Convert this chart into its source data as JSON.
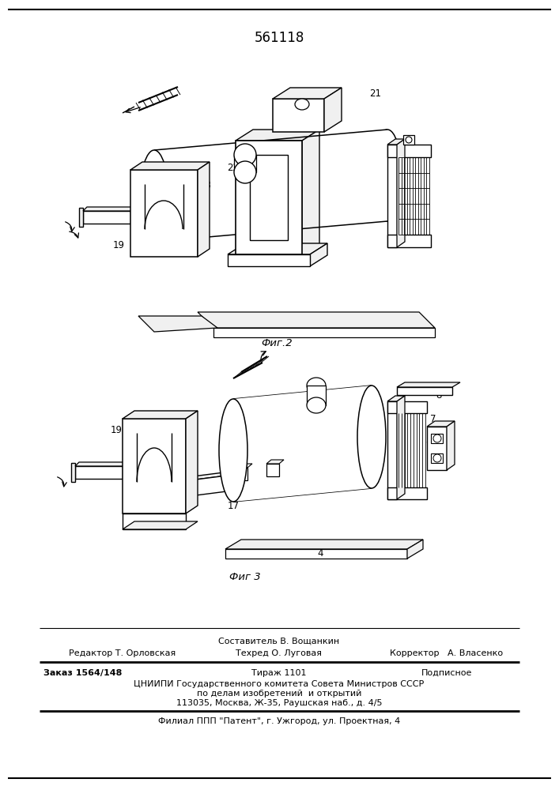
{
  "patent_number": "561118",
  "fig2_label": "Фиг.2",
  "fig3_label": "Фиг 3",
  "footer_line1": "Составитель В. Вощанкин",
  "footer_line2_col1": "Редактор Т. Орловская",
  "footer_line2_col2": "Техред О. Луговая",
  "footer_line2_col3": "Корректор   А. Власенко",
  "footer_line3_col1": "Заказ 1564/148",
  "footer_line3_col2": "Тираж 1101",
  "footer_line3_col3": "Подписное",
  "footer_line4": "ЦНИИПИ Государственного комитета Совета Министров СССР",
  "footer_line5": "по делам изобретений  и открытий",
  "footer_line6": "113035, Москва, Ж-35, Раушская наб., д. 4/5",
  "footer_line7": "Филиал ППП \"Патент\", г. Ужгород, ул. Проектная, 4",
  "bg_color": "#ffffff",
  "line_color": "#000000"
}
